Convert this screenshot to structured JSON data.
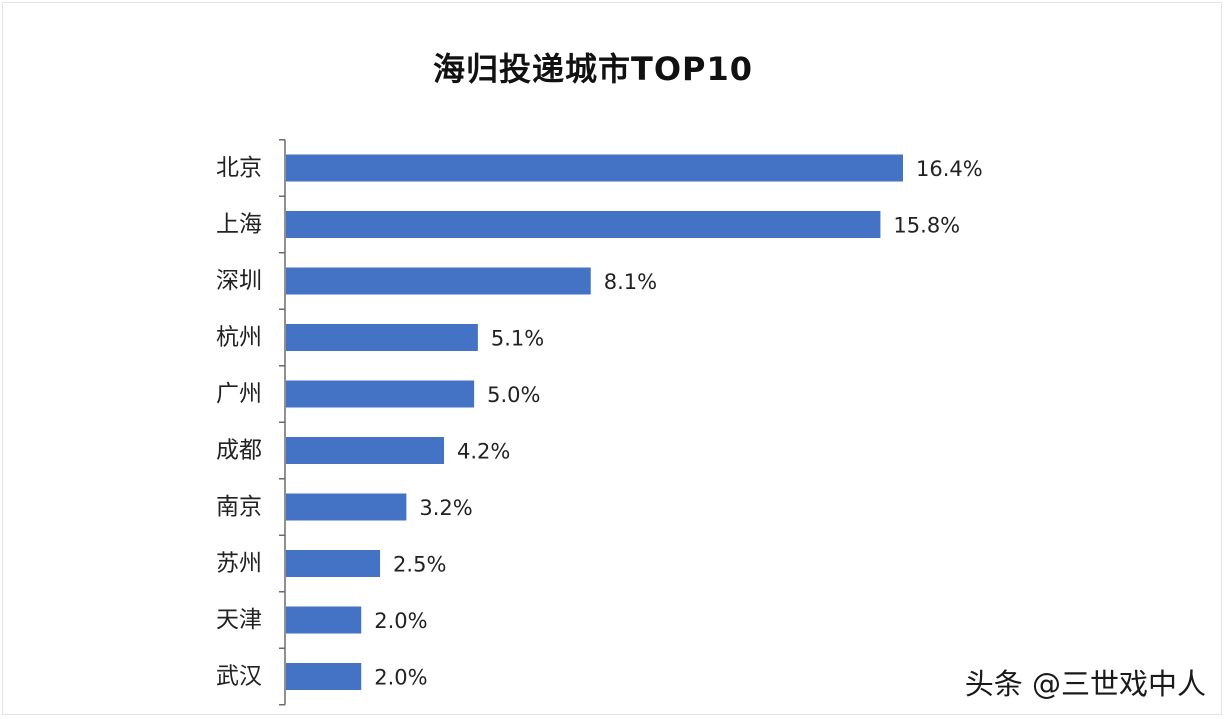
{
  "chart_data": {
    "type": "bar",
    "orientation": "horizontal",
    "title": "海归投递城市TOP10",
    "categories": [
      "北京",
      "上海",
      "深圳",
      "杭州",
      "广州",
      "成都",
      "南京",
      "苏州",
      "天津",
      "武汉"
    ],
    "values": [
      16.4,
      15.8,
      8.1,
      5.1,
      5.0,
      4.2,
      3.2,
      2.5,
      2.0,
      2.0
    ],
    "value_labels": [
      "16.4%",
      "15.8%",
      "8.1%",
      "5.1%",
      "5.0%",
      "4.2%",
      "3.2%",
      "2.5%",
      "2.0%",
      "2.0%"
    ],
    "unit": "%",
    "bar_color": "#4472c4",
    "grid": false,
    "legend": "none"
  },
  "watermark": "头条 @三世戏中人"
}
